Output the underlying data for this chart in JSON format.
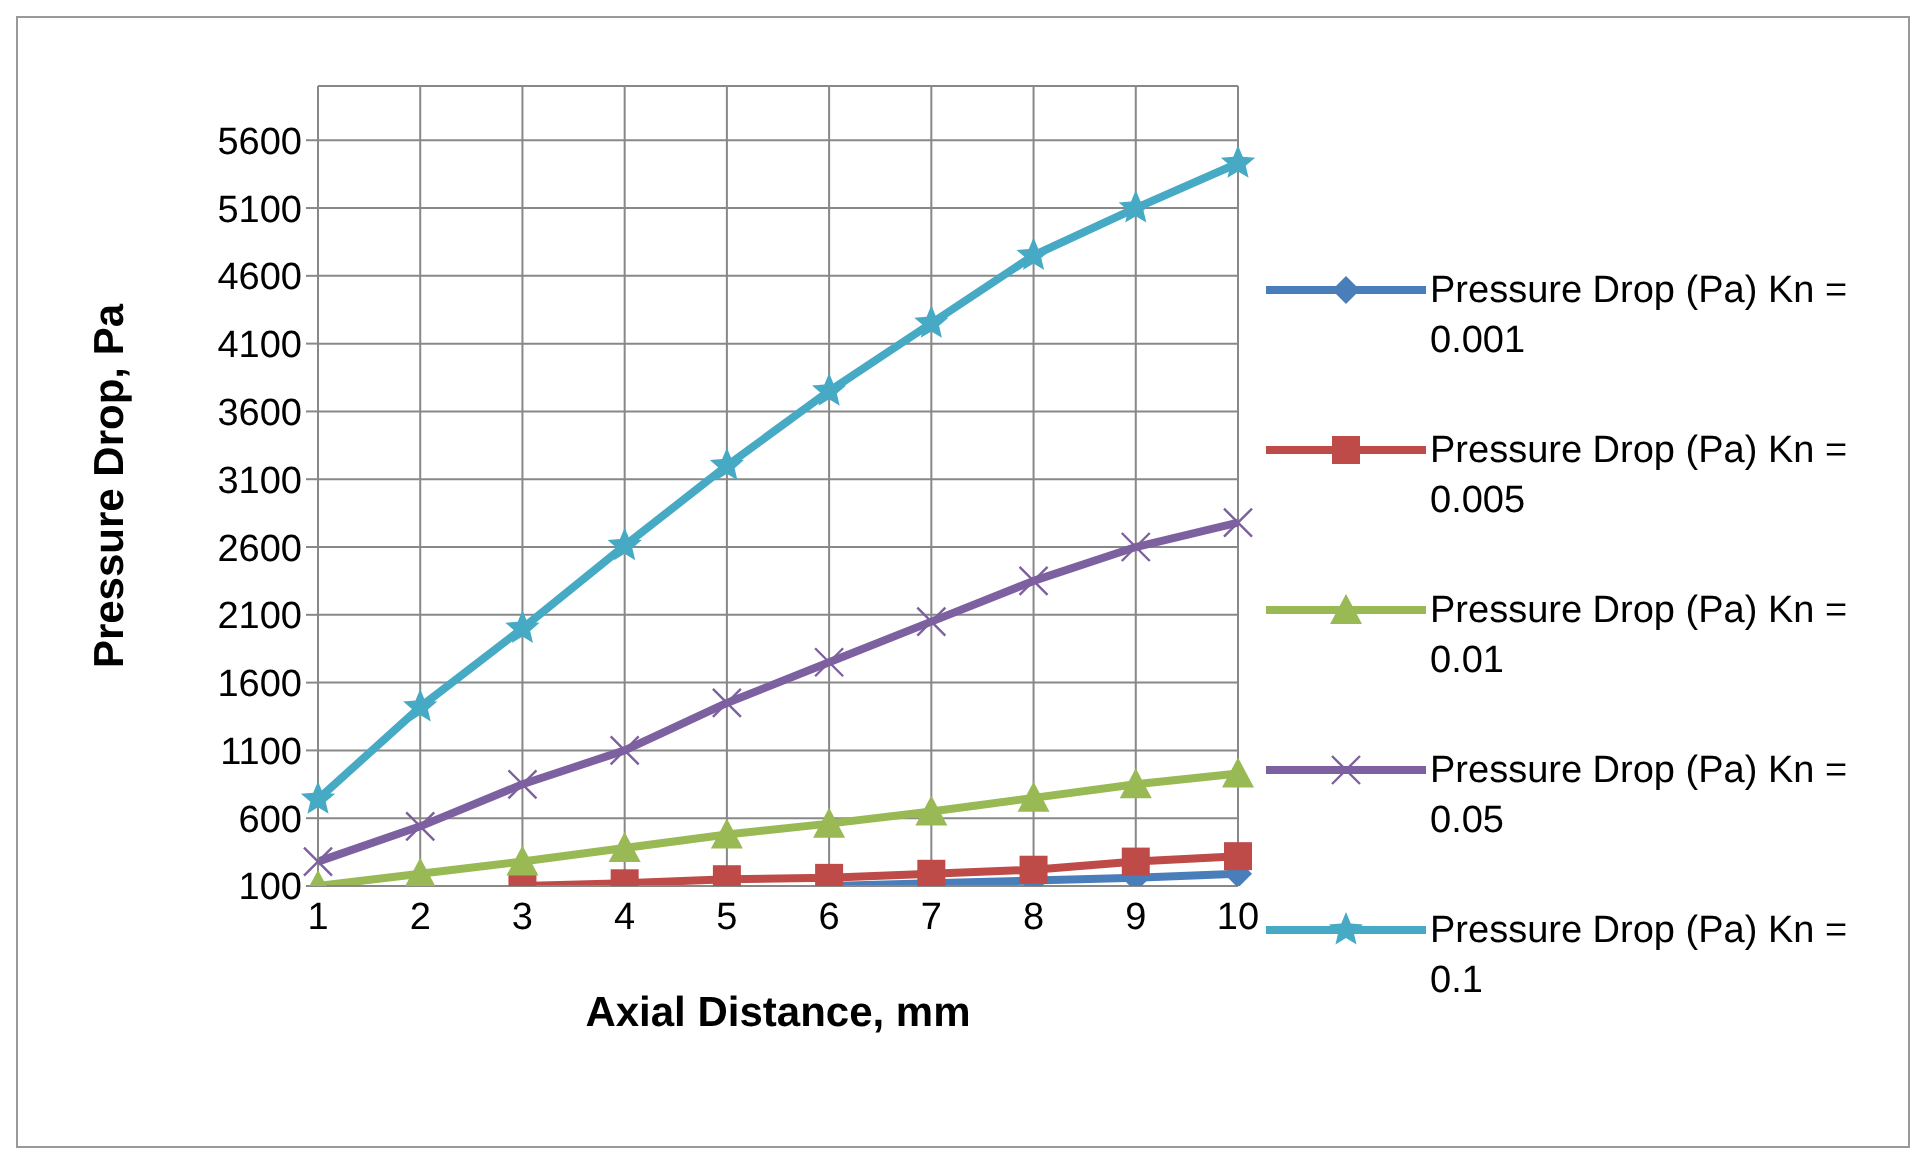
{
  "chart_data": {
    "type": "line",
    "xlabel": "Axial Distance, mm",
    "ylabel": "Pressure Drop, Pa",
    "categories": [
      "1",
      "2",
      "3",
      "4",
      "5",
      "6",
      "7",
      "8",
      "9",
      "10"
    ],
    "ylim": [
      100,
      6000
    ],
    "yticks": [
      100,
      600,
      1100,
      1600,
      2100,
      2600,
      3100,
      3600,
      4100,
      4600,
      5100,
      5600
    ],
    "grid": true,
    "legend": "right",
    "series": [
      {
        "name": "Pressure Drop (Pa) Kn = 0.001",
        "color": "#4a7ebb",
        "marker": "diamond",
        "values": [
          null,
          null,
          null,
          null,
          null,
          100,
          120,
          140,
          160,
          190
        ]
      },
      {
        "name": "Pressure Drop (Pa) Kn = 0.005",
        "color": "#be4b48",
        "marker": "square",
        "values": [
          null,
          null,
          100,
          120,
          150,
          160,
          190,
          220,
          280,
          320
        ]
      },
      {
        "name": "Pressure Drop (Pa) Kn = 0.01",
        "color": "#98b954",
        "marker": "triangle",
        "values": [
          100,
          190,
          280,
          380,
          480,
          560,
          650,
          750,
          850,
          930
        ]
      },
      {
        "name": "Pressure Drop (Pa) Kn = 0.05",
        "color": "#7d60a0",
        "marker": "cross",
        "values": [
          280,
          540,
          850,
          1100,
          1450,
          1750,
          2050,
          2350,
          2600,
          2780
        ]
      },
      {
        "name": "Pressure Drop (Pa) Kn = 0.1",
        "color": "#46aac5",
        "marker": "star",
        "values": [
          740,
          1420,
          2000,
          2610,
          3200,
          3750,
          4250,
          4750,
          5100,
          5430
        ]
      }
    ]
  }
}
